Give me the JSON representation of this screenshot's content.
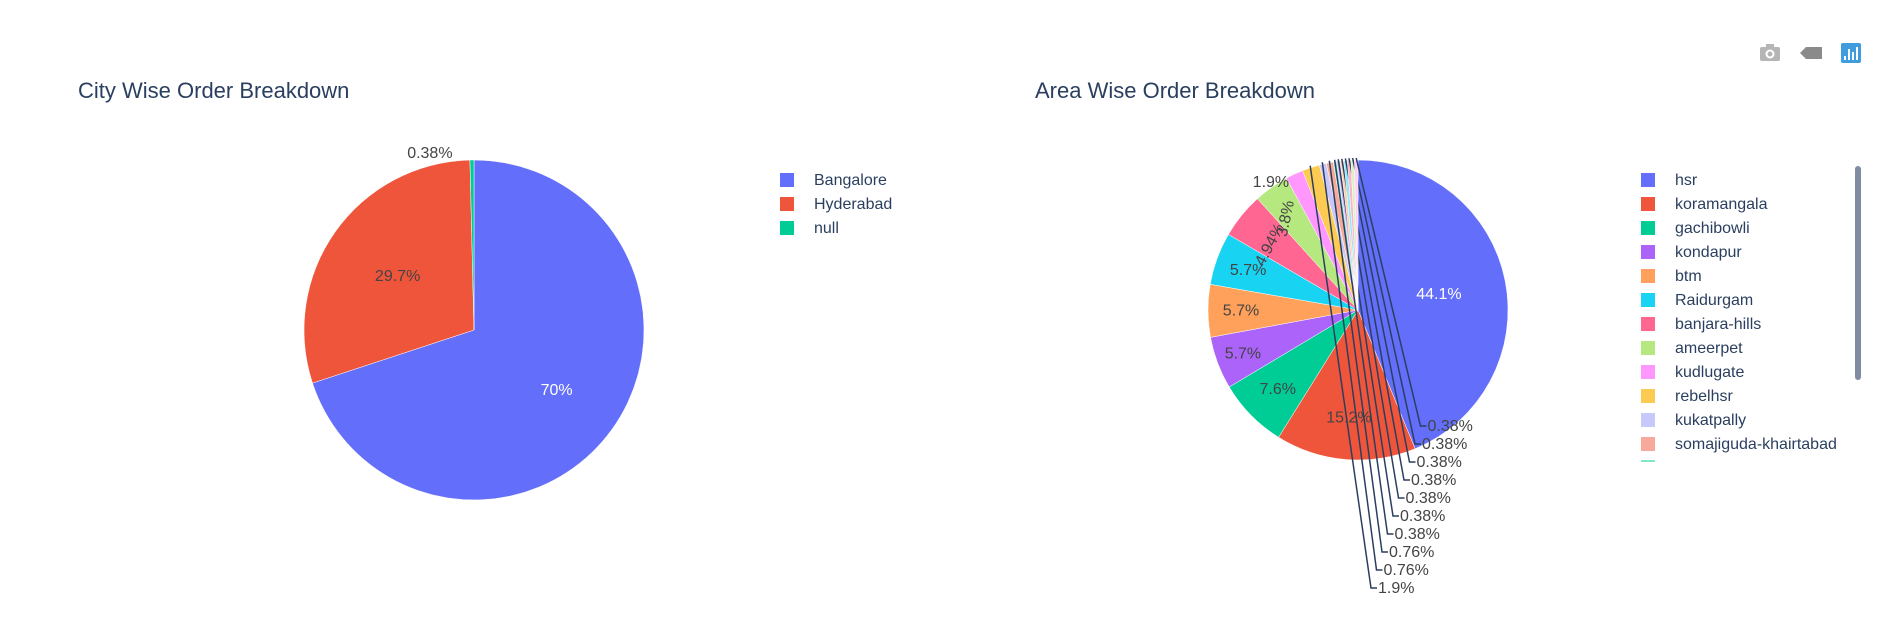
{
  "modebar": {
    "buttons": [
      {
        "name": "download-plot-button",
        "icon": "camera-icon",
        "color": "#b5b5b5"
      },
      {
        "name": "compare-hover-button",
        "icon": "tag-icon",
        "color": "#8a8a8a"
      },
      {
        "name": "plotly-logo-button",
        "icon": "bar-chart-icon",
        "color": "#3f9cde"
      }
    ]
  },
  "chart_data": [
    {
      "type": "pie",
      "title": "City Wise Order Breakdown",
      "labels": [
        "Bangalore",
        "Hyderabad",
        "null"
      ],
      "values": [
        70,
        29.7,
        0.38
      ],
      "text": [
        "70%",
        "29.7%",
        "0.38%"
      ],
      "colors": [
        "#636efa",
        "#ef553b",
        "#00cc96"
      ],
      "text_colors": [
        "#ffffff",
        "#444444",
        "#444444"
      ],
      "legend_placement": "right"
    },
    {
      "type": "pie",
      "title": "Area Wise Order Breakdown",
      "labels": [
        "hsr",
        "koramangala",
        "gachibowli",
        "kondapur",
        "btm",
        "Raidurgam",
        "banjara-hills",
        "ameerpet",
        "kudlugate",
        "rebelhsr",
        "kukatpally",
        "somajiguda-khairtabad",
        "",
        "",
        "",
        "",
        "",
        "",
        ""
      ],
      "values": [
        44.1,
        15.2,
        7.6,
        5.7,
        5.7,
        5.7,
        4.94,
        3.8,
        1.9,
        1.9,
        0.76,
        0.76,
        0.38,
        0.38,
        0.38,
        0.38,
        0.38,
        0.38,
        0.38
      ],
      "text": [
        "44.1%",
        "15.2%",
        "7.6%",
        "5.7%",
        "5.7%",
        "5.7%",
        "4.94%",
        "3.8%",
        "1.9%",
        "1.9%",
        "0.76%",
        "0.76%",
        "0.38%",
        "0.38%",
        "0.38%",
        "0.38%",
        "0.38%",
        "0.38%",
        "0.38%"
      ],
      "colors": [
        "#636efa",
        "#ef553b",
        "#00cc96",
        "#ab63fa",
        "#ffa15a",
        "#19d3f3",
        "#ff6692",
        "#b6e880",
        "#ff97ff",
        "#fecb52",
        "#c8c8fa",
        "#f7a99a",
        "#7fe8c9",
        "#d9b0fc",
        "#ffd0ac",
        "#8ce9f9",
        "#ffb2c8",
        "#daf3bf",
        "#ffcbff"
      ],
      "text_colors": [
        "#ffffff",
        "#444444",
        "#444444",
        "#444444",
        "#444444",
        "#444444",
        "#444444",
        "#444444",
        "#444444",
        "#444444",
        "#444444",
        "#444444",
        "#444444",
        "#444444",
        "#444444",
        "#444444",
        "#444444",
        "#444444",
        "#444444"
      ],
      "legend_placement": "right",
      "legend_scrollable": true
    }
  ]
}
